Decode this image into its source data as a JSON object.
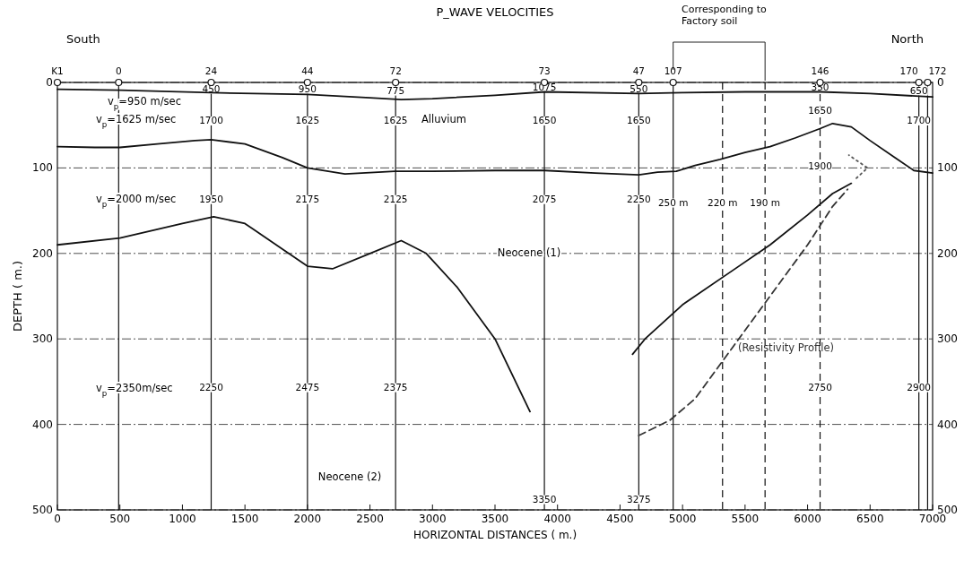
{
  "chart_data": {
    "type": "line",
    "title": "P_WAVE VELOCITIES",
    "xlabel": "HORIZONTAL DISTANCES ( m.)",
    "ylabel": "DEPTH ( m.)",
    "xlim": [
      0,
      7000
    ],
    "xticks": [
      0,
      500,
      1000,
      1500,
      2000,
      2500,
      3000,
      3500,
      4000,
      4500,
      5000,
      5500,
      6000,
      6500,
      7000
    ],
    "ylim": [
      500,
      0
    ],
    "yticks": [
      0,
      100,
      200,
      300,
      400,
      500
    ],
    "y2lim": [
      500,
      0
    ],
    "y2ticks": [
      0,
      100,
      200,
      300,
      400,
      500
    ],
    "grid": "y",
    "series": [
      {
        "type": "scatter",
        "marker": "circle",
        "color": "#111111",
        "x": [
          0,
          490,
          1230,
          2000,
          2705,
          3895,
          4650,
          4925,
          6100,
          6890,
          6960
        ],
        "values": [
          0,
          0,
          0,
          0,
          0,
          0,
          0,
          0,
          0,
          0,
          0
        ]
      },
      {
        "color": "#111111",
        "line_style": "solid",
        "x": [
          0,
          500,
          1230,
          2000,
          2500,
          2750,
          3000,
          3500,
          3900,
          4650,
          5000,
          5500,
          6100,
          6500,
          7000
        ],
        "values": [
          8,
          9,
          12,
          14,
          18,
          20,
          19,
          15,
          11,
          13,
          12,
          11,
          11,
          13,
          17
        ]
      },
      {
        "color": "#111111",
        "line_style": "solid",
        "x": [
          0,
          300,
          500,
          800,
          1100,
          1230,
          1500,
          1800,
          2000,
          2300,
          2700,
          3000,
          3500,
          3900,
          4300,
          4650,
          4800,
          4950,
          5100,
          5300,
          5500,
          5700,
          5900,
          6100,
          6200,
          6350,
          6500,
          6700,
          6850,
          7000
        ],
        "values": [
          75,
          76,
          76,
          72,
          68,
          67,
          72,
          88,
          100,
          107,
          104,
          104,
          103,
          103,
          106,
          108,
          105,
          104,
          97,
          90,
          82,
          75,
          65,
          54,
          48,
          52,
          68,
          88,
          103,
          106
        ]
      },
      {
        "color": "#111111",
        "line_style": "solid",
        "x": [
          0,
          500,
          1000,
          1250,
          1500,
          1800,
          2000,
          2200,
          2500,
          2750,
          2950,
          3200,
          3500,
          3780
        ],
        "values": [
          190,
          182,
          165,
          157,
          165,
          195,
          215,
          218,
          200,
          185,
          200,
          240,
          300,
          385
        ]
      },
      {
        "color": "#111111",
        "line_style": "solid",
        "x": [
          4600,
          4700,
          5000,
          5400,
          5700,
          6000,
          6200,
          6350
        ],
        "values": [
          318,
          300,
          260,
          220,
          190,
          155,
          130,
          118
        ]
      },
      {
        "name": "(Resistivity Profile)",
        "color": "#333333",
        "line_style": "dashed",
        "x": [
          4650,
          4900,
          5100,
          5400,
          5700,
          6000,
          6200,
          6320
        ],
        "values": [
          413,
          395,
          370,
          310,
          250,
          190,
          145,
          125
        ]
      },
      {
        "color": "#555555",
        "line_style": "dotted",
        "x": [
          6390,
          6480,
          6330
        ],
        "values": [
          112,
          100,
          85
        ]
      }
    ],
    "ref_lines": [
      {
        "axis": "x",
        "value": 490,
        "line_style": "solid"
      },
      {
        "axis": "x",
        "value": 1230,
        "line_style": "solid"
      },
      {
        "axis": "x",
        "value": 2000,
        "line_style": "solid"
      },
      {
        "axis": "x",
        "value": 2705,
        "line_style": "solid"
      },
      {
        "axis": "x",
        "value": 3895,
        "line_style": "solid"
      },
      {
        "axis": "x",
        "value": 4650,
        "line_style": "solid"
      },
      {
        "axis": "x",
        "value": 4925,
        "line_style": "solid"
      },
      {
        "axis": "x",
        "value": 5320,
        "line_style": "dashed"
      },
      {
        "axis": "x",
        "value": 5660,
        "line_style": "dashed"
      },
      {
        "axis": "x",
        "value": 6100,
        "line_style": "dashed"
      },
      {
        "axis": "x",
        "value": 6890,
        "line_style": "solid"
      },
      {
        "axis": "x",
        "value": 6960,
        "line_style": "solid"
      }
    ],
    "annotations": [
      "South",
      "North",
      "Corresponding to Factory soil",
      "v$_{p}$=950 m/sec",
      "v$_{p}$=1625 m/sec",
      "Alluvium",
      "v$_{p}$=2000 m/sec",
      "Neocene (1)",
      "v$_{p}$=2350m/sec",
      "Neocene (2)",
      {
        "text": "K1",
        "x": 0,
        "y": 0
      },
      {
        "text": "0",
        "x": 490,
        "y": 0
      },
      {
        "text": "24",
        "x": 1230,
        "y": 0
      },
      {
        "text": "44",
        "x": 2000,
        "y": 0
      },
      {
        "text": "72",
        "x": 2705,
        "y": 0
      },
      {
        "text": "73",
        "x": 3895,
        "y": 0
      },
      {
        "text": "47",
        "x": 4650,
        "y": 0
      },
      {
        "text": "107",
        "x": 4925,
        "y": 0
      },
      {
        "text": "146",
        "x": 6100,
        "y": 0
      },
      {
        "text": "170",
        "x": 6890,
        "y": 0
      },
      {
        "text": "172",
        "x": 6960,
        "y": 0
      },
      {
        "text": "450",
        "x": 1230,
        "y": 7
      },
      {
        "text": "950",
        "x": 2000,
        "y": 7
      },
      {
        "text": "775",
        "x": 2705,
        "y": 9
      },
      {
        "text": "1075",
        "x": 3895,
        "y": 5
      },
      {
        "text": "550",
        "x": 4650,
        "y": 7
      },
      {
        "text": "350",
        "x": 6100,
        "y": 5
      },
      {
        "text": "650",
        "x": 6890,
        "y": 9
      },
      {
        "text": "1700",
        "x": 1230,
        "y": 44
      },
      {
        "text": "1625",
        "x": 2000,
        "y": 44
      },
      {
        "text": "1625",
        "x": 2705,
        "y": 44
      },
      {
        "text": "1650",
        "x": 3895,
        "y": 44
      },
      {
        "text": "1650",
        "x": 4650,
        "y": 44
      },
      {
        "text": "1650",
        "x": 6100,
        "y": 32
      },
      {
        "text": "1700",
        "x": 6890,
        "y": 44
      },
      {
        "text": "1900",
        "x": 6100,
        "y": 97
      },
      {
        "text": "1950",
        "x": 1230,
        "y": 136
      },
      {
        "text": "2175",
        "x": 2000,
        "y": 136
      },
      {
        "text": "2125",
        "x": 2705,
        "y": 136
      },
      {
        "text": "2075",
        "x": 3895,
        "y": 136
      },
      {
        "text": "2250",
        "x": 4650,
        "y": 136
      },
      {
        "text": "250 m",
        "x": 4925,
        "y": 140
      },
      {
        "text": "220 m",
        "x": 5320,
        "y": 140
      },
      {
        "text": "190 m",
        "x": 5660,
        "y": 140
      },
      {
        "text": "2250",
        "x": 1230,
        "y": 356
      },
      {
        "text": "2475",
        "x": 2000,
        "y": 356
      },
      {
        "text": "2375",
        "x": 2705,
        "y": 356
      },
      {
        "text": "2750",
        "x": 6100,
        "y": 356
      },
      {
        "text": "2900",
        "x": 6890,
        "y": 356
      },
      {
        "text": "3350",
        "x": 3895,
        "y": 487
      },
      {
        "text": "3275",
        "x": 4650,
        "y": 487
      }
    ]
  }
}
